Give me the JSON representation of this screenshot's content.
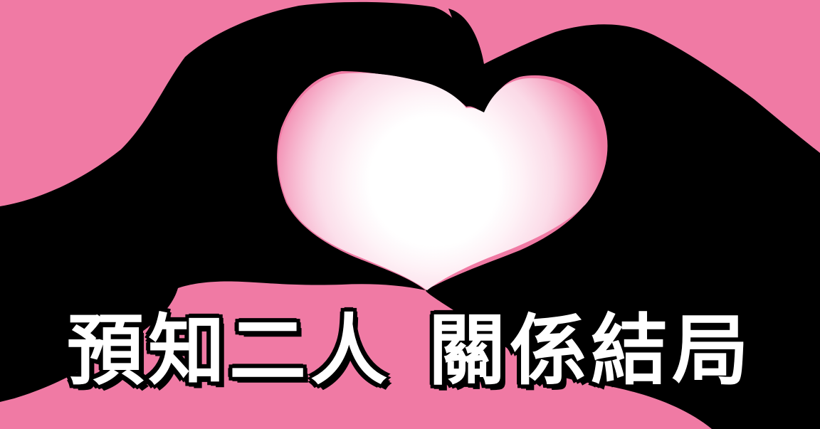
{
  "caption": {
    "left_phrase": "預知二人",
    "right_phrase": "關係結局"
  },
  "colors": {
    "background": "#f07aa4",
    "silhouette": "#000000",
    "glow_center": "#ffffff",
    "glow_edge": "#f6a9c8",
    "caption_fill": "#ffffff",
    "caption_outline": "#000000"
  },
  "artwork": {
    "subject": "heart-shaped-hands-silhouette"
  }
}
